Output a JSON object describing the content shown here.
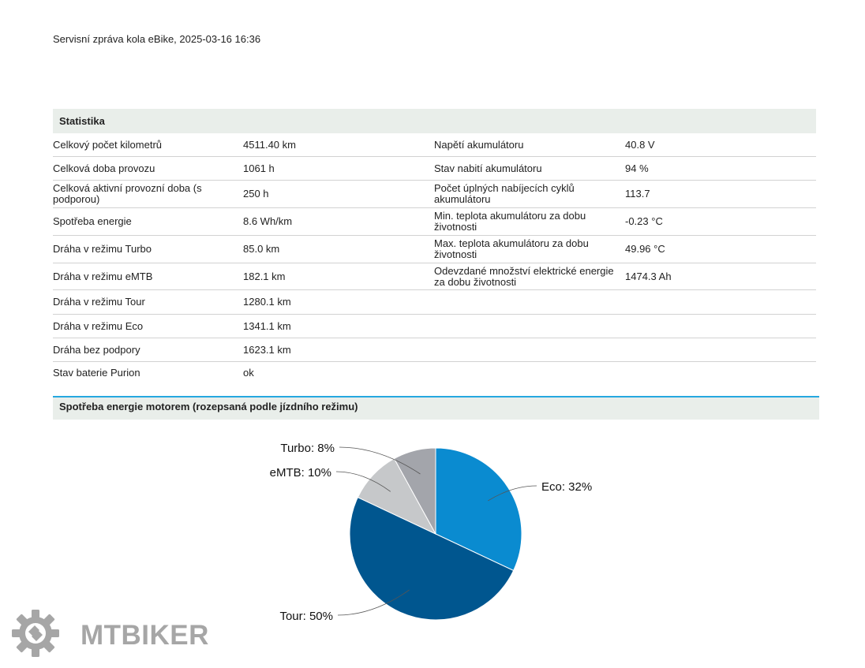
{
  "report_title": "Servisní zpráva kola eBike, 2025-03-16 16:36",
  "statistics": {
    "header": "Statistika",
    "rows": [
      {
        "label": "Celkový počet kilometrů",
        "value": "4511.40 km",
        "label2": "Napětí akumulátoru",
        "value2": "40.8 V"
      },
      {
        "label": "Celková doba provozu",
        "value": "1061 h",
        "label2": "Stav nabití akumulátoru",
        "value2": "94 %"
      },
      {
        "label": "Celková aktivní provozní doba (s podporou)",
        "value": "250 h",
        "label2": "Počet úplných nabíjecích cyklů akumulátoru",
        "value2": "113.7"
      },
      {
        "label": "Spotřeba energie",
        "value": "8.6 Wh/km",
        "label2": "Min. teplota akumulátoru za dobu životnosti",
        "value2": "-0.23 °C"
      },
      {
        "label": "Dráha v režimu Turbo",
        "value": "85.0 km",
        "label2": "Max. teplota akumulátoru za dobu životnosti",
        "value2": "49.96 °C"
      },
      {
        "label": "Dráha v režimu eMTB",
        "value": "182.1 km",
        "label2": "Odevzdané množství elektrické energie za dobu životnosti",
        "value2": "1474.3 Ah"
      },
      {
        "label": "Dráha v režimu Tour",
        "value": "1280.1 km",
        "label2": "",
        "value2": ""
      },
      {
        "label": "Dráha v režimu Eco",
        "value": "1341.1 km",
        "label2": "",
        "value2": ""
      },
      {
        "label": "Dráha bez podpory",
        "value": "1623.1 km",
        "label2": "",
        "value2": ""
      },
      {
        "label": "Stav baterie Purion",
        "value": "ok",
        "label2": "",
        "value2": ""
      }
    ]
  },
  "energy_section": {
    "header": "Spotřeba energie motorem (rozepsaná podle jízdního režimu)"
  },
  "chart_data": {
    "type": "pie",
    "slices": [
      {
        "label": "Eco: 32%",
        "value": 32,
        "color": "#0a8bd0"
      },
      {
        "label": "Tour: 50%",
        "value": 50,
        "color": "#00568f"
      },
      {
        "label": "eMTB: 10%",
        "value": 10,
        "color": "#c6c8ca"
      },
      {
        "label": "Turbo: 8%",
        "value": 8,
        "color": "#a3a5ab"
      }
    ],
    "start_angle_deg": 0,
    "direction": "clockwise"
  },
  "watermark": {
    "text": "MTBIKER",
    "icon": "gear-logo-icon",
    "color": "#a6a6a6"
  }
}
